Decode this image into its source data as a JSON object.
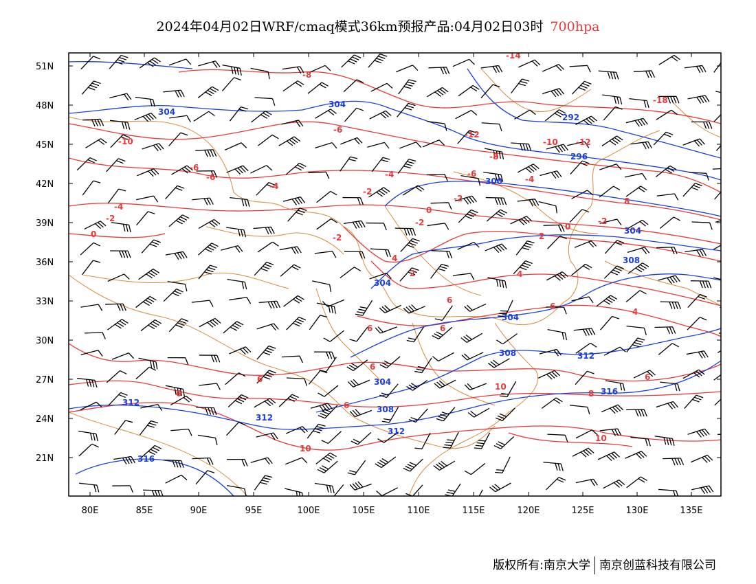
{
  "title": {
    "main": "2024年04月02日WRF/cmaq模式36km预报产品:04月02日03时",
    "level": "700hpa"
  },
  "colors": {
    "temperature": "#e8393a",
    "geopotential": "#1a3fe0",
    "border": "#d98b3a",
    "wind": "#000000",
    "level_text": "#e8393a"
  },
  "axes": {
    "lat_labels": [
      "51N",
      "48N",
      "45N",
      "42N",
      "39N",
      "36N",
      "33N",
      "30N",
      "27N",
      "24N",
      "21N"
    ],
    "lon_labels": [
      "80E",
      "85E",
      "90E",
      "95E",
      "100E",
      "105E",
      "110E",
      "115E",
      "120E",
      "125E",
      "130E",
      "135E"
    ]
  },
  "contour_labels": {
    "temperature": [
      "-14",
      "-8",
      "-18",
      "-10",
      "-6",
      "-12",
      "-8",
      "-10",
      "-12",
      "-6",
      "-6",
      "-6",
      "-4",
      "-4",
      "-2",
      "-4",
      "-2",
      "-4",
      "-2",
      "0",
      "-2",
      "-2",
      "-2",
      "0",
      "0",
      "2",
      "4",
      "2",
      "4",
      "6",
      "6",
      "6",
      "6",
      "6",
      "6",
      "6",
      "8",
      "4",
      "6",
      "6",
      "10",
      "8",
      "10",
      "10"
    ],
    "geopotential": [
      "304",
      "304",
      "292",
      "300",
      "296",
      "304",
      "308",
      "304",
      "304",
      "308",
      "312",
      "316",
      "304",
      "308",
      "312",
      "312",
      "312",
      "316"
    ]
  },
  "footer": {
    "left": "版权所有:南京大学",
    "right": "南京创蓝科技有限公司"
  }
}
